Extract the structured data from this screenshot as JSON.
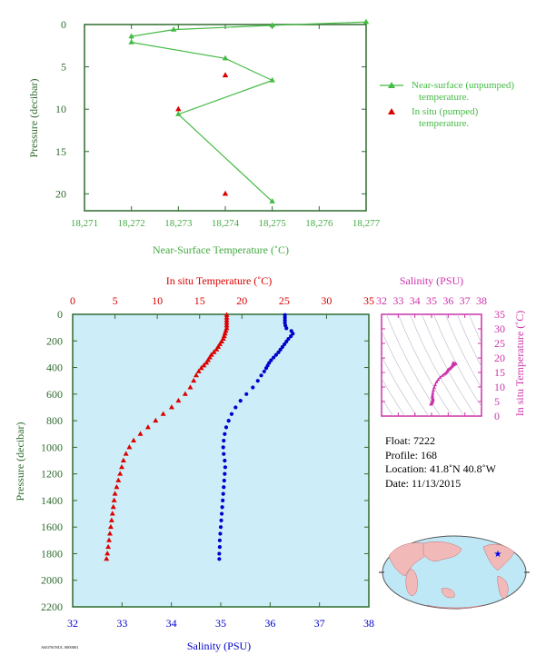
{
  "chart_data": [
    {
      "type": "line",
      "xlabel": "Near-Surface Temperature (˚C)",
      "ylabel": "Pressure (decibar)",
      "xlim": [
        18.271,
        18.277
      ],
      "ylim": [
        0,
        22
      ],
      "y_reversed": true,
      "x_ticks": [
        "18,271",
        "18,272",
        "18,273",
        "18,274",
        "18,275",
        "18,276",
        "18,277"
      ],
      "y_ticks": [
        "0",
        "5",
        "10",
        "15",
        "20"
      ],
      "legend_position": "right",
      "series": [
        {
          "name": "Near-surface (unpumped) temperature.",
          "marker": "triangle",
          "color": "#44bb44",
          "points": [
            {
              "x": 18.277,
              "y": -0.3
            },
            {
              "x": 18.275,
              "y": 0.1
            },
            {
              "x": 18.2729,
              "y": 0.6
            },
            {
              "x": 18.272,
              "y": 1.4
            },
            {
              "x": 18.272,
              "y": 2.1
            },
            {
              "x": 18.274,
              "y": 4.0
            },
            {
              "x": 18.275,
              "y": 6.6
            },
            {
              "x": 18.273,
              "y": 10.6
            },
            {
              "x": 18.275,
              "y": 20.9
            }
          ]
        },
        {
          "name": "In situ (pumped) temperature.",
          "marker": "triangle",
          "color": "#dd0000",
          "points": [
            {
              "x": 18.274,
              "y": 6.0
            },
            {
              "x": 18.273,
              "y": 10.0
            },
            {
              "x": 18.274,
              "y": 20.0
            }
          ]
        }
      ]
    },
    {
      "type": "scatter",
      "title_top": "In situ Temperature (˚C)",
      "xlabel": "Salinity (PSU)",
      "ylabel": "Pressure (decibar)",
      "top_axis_ticks": [
        "0",
        "5",
        "10",
        "15",
        "20",
        "25",
        "30",
        "35"
      ],
      "bottom_axis_ticks": [
        "32",
        "33",
        "34",
        "35",
        "36",
        "37",
        "38"
      ],
      "y_ticks": [
        "0",
        "200",
        "400",
        "600",
        "800",
        "1000",
        "1200",
        "1400",
        "1600",
        "1800",
        "2000",
        "2200"
      ],
      "temperature_lim": [
        0,
        35
      ],
      "salinity_lim": [
        32,
        38
      ],
      "pressure_lim": [
        0,
        2200
      ],
      "temperature_color": "#dd0000",
      "salinity_color": "#0000cc",
      "background_color": "#cdeef8",
      "temperature": [
        {
          "p": 5,
          "t": 18.2
        },
        {
          "p": 25,
          "t": 18.2
        },
        {
          "p": 45,
          "t": 18.2
        },
        {
          "p": 65,
          "t": 18.2
        },
        {
          "p": 85,
          "t": 18.2
        },
        {
          "p": 105,
          "t": 18.2
        },
        {
          "p": 125,
          "t": 18.1
        },
        {
          "p": 145,
          "t": 18.0
        },
        {
          "p": 165,
          "t": 17.9
        },
        {
          "p": 185,
          "t": 17.8
        },
        {
          "p": 205,
          "t": 17.6
        },
        {
          "p": 225,
          "t": 17.4
        },
        {
          "p": 245,
          "t": 17.2
        },
        {
          "p": 265,
          "t": 17.0
        },
        {
          "p": 285,
          "t": 16.7
        },
        {
          "p": 305,
          "t": 16.4
        },
        {
          "p": 325,
          "t": 16.2
        },
        {
          "p": 345,
          "t": 16.0
        },
        {
          "p": 365,
          "t": 15.8
        },
        {
          "p": 385,
          "t": 15.5
        },
        {
          "p": 405,
          "t": 15.2
        },
        {
          "p": 430,
          "t": 14.9
        },
        {
          "p": 460,
          "t": 14.6
        },
        {
          "p": 500,
          "t": 14.3
        },
        {
          "p": 550,
          "t": 13.9
        },
        {
          "p": 600,
          "t": 13.3
        },
        {
          "p": 650,
          "t": 12.5
        },
        {
          "p": 700,
          "t": 11.7
        },
        {
          "p": 750,
          "t": 10.7
        },
        {
          "p": 800,
          "t": 9.8
        },
        {
          "p": 850,
          "t": 8.9
        },
        {
          "p": 900,
          "t": 8.0
        },
        {
          "p": 950,
          "t": 7.2
        },
        {
          "p": 1000,
          "t": 6.7
        },
        {
          "p": 1050,
          "t": 6.3
        },
        {
          "p": 1100,
          "t": 6.0
        },
        {
          "p": 1150,
          "t": 5.8
        },
        {
          "p": 1200,
          "t": 5.6
        },
        {
          "p": 1250,
          "t": 5.4
        },
        {
          "p": 1300,
          "t": 5.2
        },
        {
          "p": 1350,
          "t": 5.0
        },
        {
          "p": 1400,
          "t": 4.9
        },
        {
          "p": 1450,
          "t": 4.8
        },
        {
          "p": 1500,
          "t": 4.7
        },
        {
          "p": 1550,
          "t": 4.6
        },
        {
          "p": 1600,
          "t": 4.5
        },
        {
          "p": 1650,
          "t": 4.4
        },
        {
          "p": 1700,
          "t": 4.3
        },
        {
          "p": 1750,
          "t": 4.2
        },
        {
          "p": 1800,
          "t": 4.1
        },
        {
          "p": 1840,
          "t": 4.0
        }
      ],
      "salinity": [
        {
          "p": 5,
          "s": 36.3
        },
        {
          "p": 25,
          "s": 36.3
        },
        {
          "p": 45,
          "s": 36.3
        },
        {
          "p": 65,
          "s": 36.3
        },
        {
          "p": 85,
          "s": 36.31
        },
        {
          "p": 105,
          "s": 36.33
        },
        {
          "p": 125,
          "s": 36.43
        },
        {
          "p": 145,
          "s": 36.46
        },
        {
          "p": 165,
          "s": 36.42
        },
        {
          "p": 185,
          "s": 36.37
        },
        {
          "p": 205,
          "s": 36.33
        },
        {
          "p": 225,
          "s": 36.29
        },
        {
          "p": 245,
          "s": 36.25
        },
        {
          "p": 265,
          "s": 36.21
        },
        {
          "p": 285,
          "s": 36.17
        },
        {
          "p": 305,
          "s": 36.12
        },
        {
          "p": 325,
          "s": 36.07
        },
        {
          "p": 345,
          "s": 36.02
        },
        {
          "p": 365,
          "s": 35.98
        },
        {
          "p": 385,
          "s": 35.95
        },
        {
          "p": 405,
          "s": 35.92
        },
        {
          "p": 430,
          "s": 35.88
        },
        {
          "p": 460,
          "s": 35.82
        },
        {
          "p": 500,
          "s": 35.75
        },
        {
          "p": 550,
          "s": 35.65
        },
        {
          "p": 600,
          "s": 35.52
        },
        {
          "p": 650,
          "s": 35.4
        },
        {
          "p": 700,
          "s": 35.3
        },
        {
          "p": 750,
          "s": 35.22
        },
        {
          "p": 800,
          "s": 35.16
        },
        {
          "p": 850,
          "s": 35.11
        },
        {
          "p": 900,
          "s": 35.08
        },
        {
          "p": 950,
          "s": 35.06
        },
        {
          "p": 1000,
          "s": 35.05
        },
        {
          "p": 1050,
          "s": 35.06
        },
        {
          "p": 1100,
          "s": 35.08
        },
        {
          "p": 1150,
          "s": 35.09
        },
        {
          "p": 1200,
          "s": 35.08
        },
        {
          "p": 1250,
          "s": 35.07
        },
        {
          "p": 1300,
          "s": 35.06
        },
        {
          "p": 1350,
          "s": 35.05
        },
        {
          "p": 1400,
          "s": 35.04
        },
        {
          "p": 1450,
          "s": 35.03
        },
        {
          "p": 1500,
          "s": 35.02
        },
        {
          "p": 1550,
          "s": 35.01
        },
        {
          "p": 1600,
          "s": 35.0
        },
        {
          "p": 1650,
          "s": 34.99
        },
        {
          "p": 1700,
          "s": 34.98
        },
        {
          "p": 1750,
          "s": 34.98
        },
        {
          "p": 1800,
          "s": 34.97
        },
        {
          "p": 1840,
          "s": 34.97
        }
      ]
    },
    {
      "type": "scatter",
      "title_top": "Salinity (PSU)",
      "ylabel_right": "In situ Temperature (˚C)",
      "x_ticks": [
        "32",
        "33",
        "34",
        "35",
        "36",
        "37",
        "38"
      ],
      "y_ticks": [
        "0",
        "5",
        "10",
        "15",
        "20",
        "25",
        "30",
        "35"
      ],
      "xlim": [
        32,
        38
      ],
      "ylim": [
        0,
        35
      ],
      "color": "#cc33aa",
      "grid": "density contours"
    }
  ],
  "info": {
    "float": "Float:  7222",
    "profile": "Profile:  168",
    "location": "Location:  41.8˚N  40.8˚W",
    "date": "Date:  11/13/2015"
  },
  "footer_code": "AK0765NUL 0000001"
}
